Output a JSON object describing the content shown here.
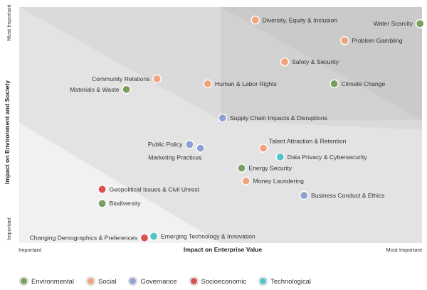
{
  "chart_data": {
    "type": "scatter",
    "xlabel": "Impact on Enterprise Value",
    "ylabel": "Impact on Environment and Society",
    "x_low_label": "Important",
    "x_high_label": "Most Important",
    "y_low_label": "Important",
    "y_high_label": "Most Important",
    "xlim": [
      0,
      100
    ],
    "ylim": [
      0,
      100
    ],
    "colors": {
      "Environmental": "#7aa061",
      "Social": "#f0a47e",
      "Governance": "#8fa0d2",
      "Socioeconomic": "#dc4f52",
      "Technological": "#55c4c8"
    },
    "legend": [
      {
        "category": "Environmental",
        "label": "Environmental"
      },
      {
        "category": "Social",
        "label": "Social"
      },
      {
        "category": "Governance",
        "label": "Governance"
      },
      {
        "category": "Socioeconomic",
        "label": "Socioeconomic"
      },
      {
        "category": "Technological",
        "label": "Technological"
      }
    ],
    "points": [
      {
        "label": "Diversity, Equity & Inclusion",
        "category": "Social",
        "x": 58.6,
        "y": 94.5,
        "label_side": "right"
      },
      {
        "label": "Water Scarcity",
        "category": "Environmental",
        "x": 99.5,
        "y": 93.0,
        "label_side": "left"
      },
      {
        "label": "Problem Gambling",
        "category": "Social",
        "x": 80.8,
        "y": 85.8,
        "label_side": "right"
      },
      {
        "label": "Safety & Security",
        "category": "Social",
        "x": 65.9,
        "y": 76.8,
        "label_side": "right"
      },
      {
        "label": "Community Relations",
        "category": "Social",
        "x": 34.2,
        "y": 69.6,
        "label_side": "left"
      },
      {
        "label": "Human & Labor Rights",
        "category": "Social",
        "x": 46.8,
        "y": 67.5,
        "label_side": "right"
      },
      {
        "label": "Climate Change",
        "category": "Environmental",
        "x": 78.2,
        "y": 67.5,
        "label_side": "right"
      },
      {
        "label": "Materials & Waste",
        "category": "Environmental",
        "x": 26.6,
        "y": 65.1,
        "label_side": "left"
      },
      {
        "label": "Supply Chain Impacts & Disruptions",
        "category": "Governance",
        "x": 50.5,
        "y": 53.0,
        "label_side": "right"
      },
      {
        "label": "Public Policy",
        "category": "Governance",
        "x": 42.3,
        "y": 41.8,
        "label_side": "left"
      },
      {
        "label": "Marketing Practices",
        "category": "Governance",
        "x": 45.0,
        "y": 40.2,
        "label_side": "below-left"
      },
      {
        "label": "Talent Attraction & Retention",
        "category": "Social",
        "x": 60.6,
        "y": 40.2,
        "label_side": "above-right"
      },
      {
        "label": "Data Privacy & Cybersecurity",
        "category": "Technological",
        "x": 64.8,
        "y": 36.5,
        "label_side": "right"
      },
      {
        "label": "Energy Security",
        "category": "Environmental",
        "x": 55.2,
        "y": 31.8,
        "label_side": "right"
      },
      {
        "label": "Money Laundering",
        "category": "Social",
        "x": 56.3,
        "y": 26.3,
        "label_side": "right"
      },
      {
        "label": "Geopolitical Issues & Civil Unrest",
        "category": "Socioeconomic",
        "x": 20.6,
        "y": 22.8,
        "label_side": "right"
      },
      {
        "label": "Business Conduct & Ethics",
        "category": "Governance",
        "x": 70.7,
        "y": 20.2,
        "label_side": "right"
      },
      {
        "label": "Biodiversity",
        "category": "Environmental",
        "x": 20.6,
        "y": 16.8,
        "label_side": "right"
      },
      {
        "label": "Emerging Technology & Innovation",
        "category": "Technological",
        "x": 33.4,
        "y": 2.9,
        "label_side": "right"
      },
      {
        "label": "Changing Demographics & Preferences",
        "category": "Socioeconomic",
        "x": 31.1,
        "y": 2.2,
        "label_side": "left"
      }
    ]
  }
}
